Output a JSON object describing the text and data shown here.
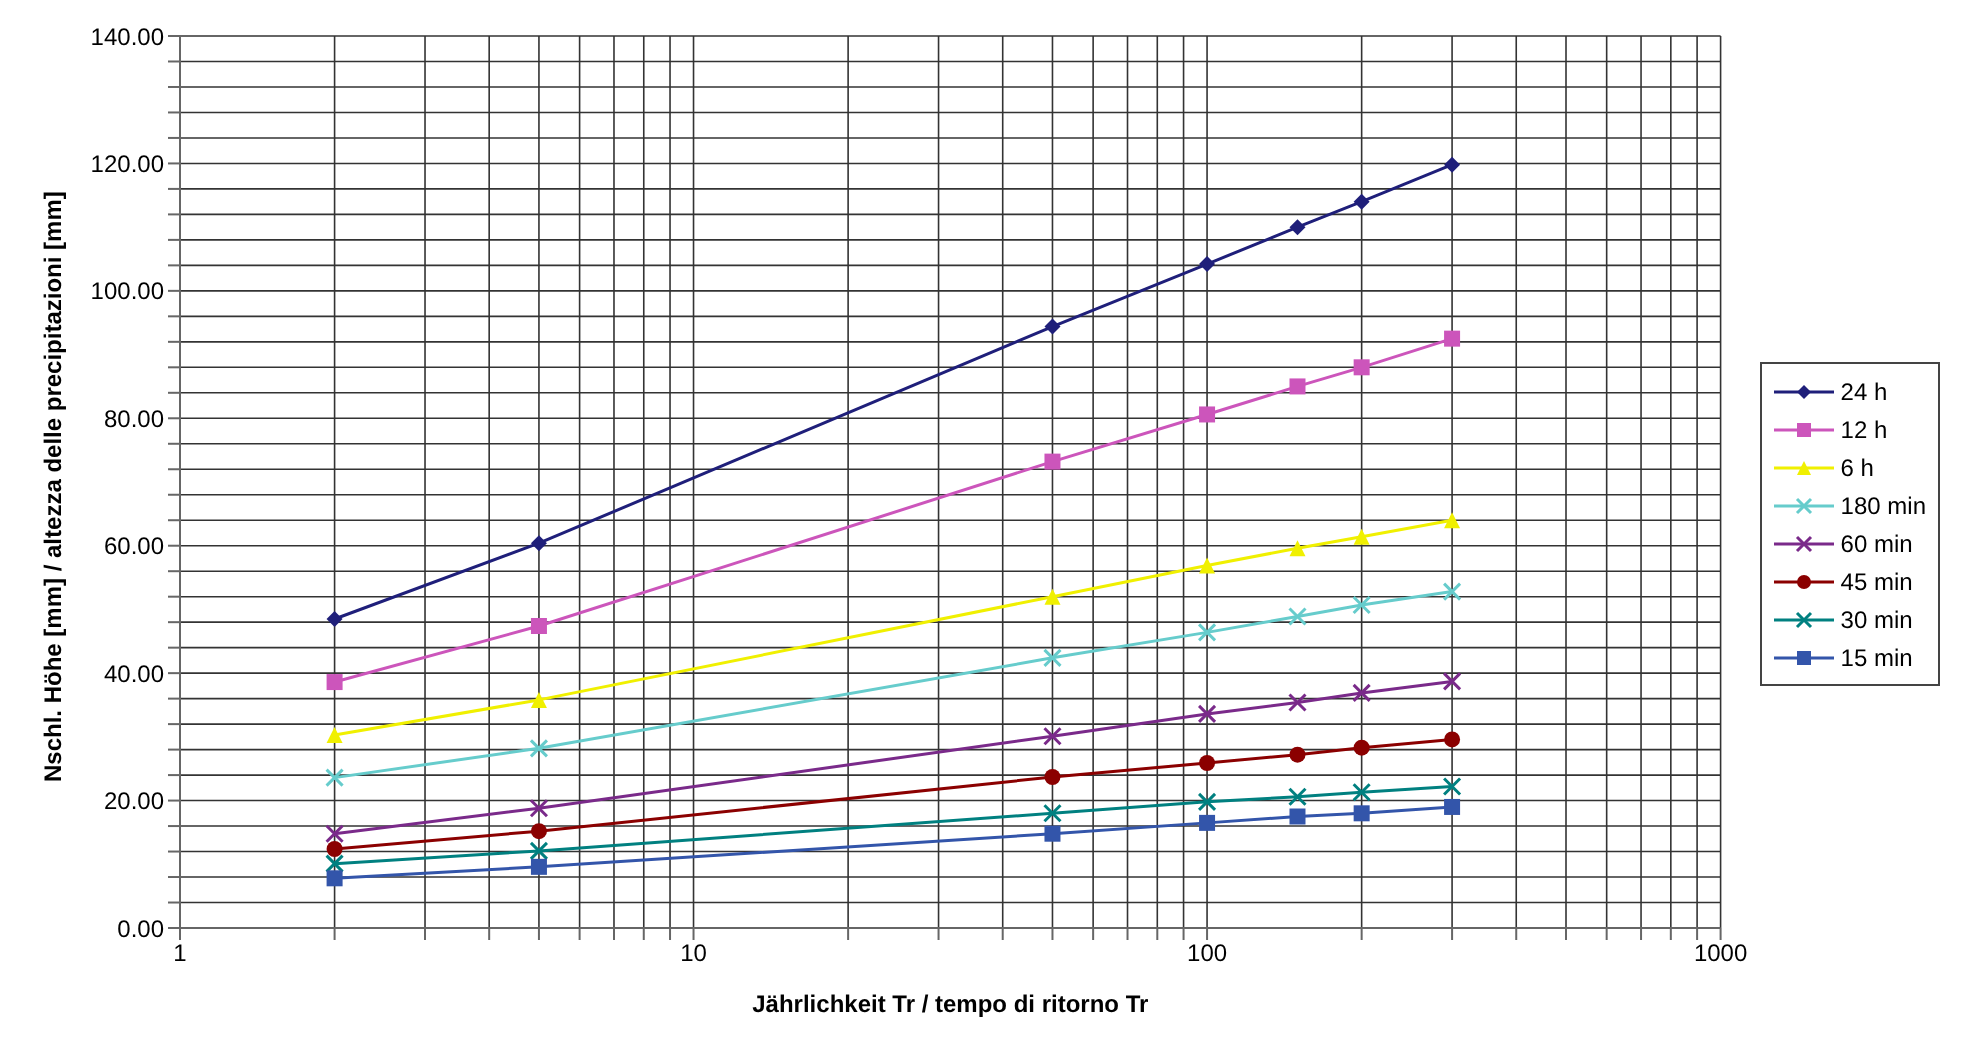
{
  "chart_data": {
    "type": "line",
    "xlabel": "Jährlichkeit Tr / tempo di ritorno Tr",
    "ylabel": "Nschl. Höhe [mm]  /  altezza delle precipitazioni [mm]",
    "x": [
      2,
      5,
      50,
      100,
      150,
      200,
      300
    ],
    "log": "x",
    "grid": true,
    "legend": "right",
    "line_style": "solid",
    "xlim": [
      1,
      1000
    ],
    "xticks": [
      1,
      {
        "value": 2,
        "label": null
      },
      {
        "value": 3,
        "label": null
      },
      {
        "value": 4,
        "label": null
      },
      {
        "value": 5,
        "label": null
      },
      {
        "value": 6,
        "label": null
      },
      {
        "value": 7,
        "label": null
      },
      {
        "value": 8,
        "label": null
      },
      {
        "value": 9,
        "label": null
      },
      10,
      {
        "value": 20,
        "label": null
      },
      {
        "value": 30,
        "label": null
      },
      {
        "value": 40,
        "label": null
      },
      {
        "value": 50,
        "label": null
      },
      {
        "value": 60,
        "label": null
      },
      {
        "value": 70,
        "label": null
      },
      {
        "value": 80,
        "label": null
      },
      {
        "value": 90,
        "label": null
      },
      100,
      {
        "value": 200,
        "label": null
      },
      {
        "value": 300,
        "label": null
      },
      {
        "value": 400,
        "label": null
      },
      {
        "value": 500,
        "label": null
      },
      {
        "value": 600,
        "label": null
      },
      {
        "value": 700,
        "label": null
      },
      {
        "value": 800,
        "label": null
      },
      {
        "value": 900,
        "label": null
      },
      1000
    ],
    "ylim": [
      0,
      140
    ],
    "yticks": [
      {
        "value": 0,
        "label": "0.00"
      },
      {
        "value": 4,
        "label": null
      },
      {
        "value": 8,
        "label": null
      },
      {
        "value": 12,
        "label": null
      },
      {
        "value": 16,
        "label": null
      },
      {
        "value": 20,
        "label": "20.00"
      },
      {
        "value": 24,
        "label": null
      },
      {
        "value": 28,
        "label": null
      },
      {
        "value": 32,
        "label": null
      },
      {
        "value": 36,
        "label": null
      },
      {
        "value": 40,
        "label": "40.00"
      },
      {
        "value": 44,
        "label": null
      },
      {
        "value": 48,
        "label": null
      },
      {
        "value": 52,
        "label": null
      },
      {
        "value": 56,
        "label": null
      },
      {
        "value": 60,
        "label": "60.00"
      },
      {
        "value": 64,
        "label": null
      },
      {
        "value": 68,
        "label": null
      },
      {
        "value": 72,
        "label": null
      },
      {
        "value": 76,
        "label": null
      },
      {
        "value": 80,
        "label": "80.00"
      },
      {
        "value": 84,
        "label": null
      },
      {
        "value": 88,
        "label": null
      },
      {
        "value": 92,
        "label": null
      },
      {
        "value": 96,
        "label": null
      },
      {
        "value": 100,
        "label": "100.00"
      },
      {
        "value": 104,
        "label": null
      },
      {
        "value": 108,
        "label": null
      },
      {
        "value": 112,
        "label": null
      },
      {
        "value": 116,
        "label": null
      },
      {
        "value": 120,
        "label": "120.00"
      },
      {
        "value": 124,
        "label": null
      },
      {
        "value": 128,
        "label": null
      },
      {
        "value": 132,
        "label": null
      },
      {
        "value": 136,
        "label": null
      },
      {
        "value": 140,
        "label": "140.00"
      }
    ],
    "series": [
      {
        "name": "24 h",
        "color": "#1f1f7a",
        "marker": "diamond",
        "values": [
          48.5,
          60.4,
          94.4,
          104.2,
          110,
          114,
          119.8
        ]
      },
      {
        "name": "12 h",
        "color": "#cc55bb",
        "marker": "square",
        "values": [
          38.6,
          47.4,
          73.2,
          80.6,
          85,
          88,
          92.5
        ]
      },
      {
        "name": "6 h",
        "color": "#f0f000",
        "marker": "triangle",
        "values": [
          30.3,
          35.8,
          52,
          56.9,
          59.6,
          61.4,
          64
        ]
      },
      {
        "name": "180 min",
        "color": "#66cccc",
        "marker": "cross",
        "values": [
          23.6,
          28.2,
          42.4,
          46.4,
          48.9,
          50.7,
          52.8
        ]
      },
      {
        "name": "60 min",
        "color": "#7a2a8a",
        "marker": "cross",
        "values": [
          14.8,
          18.8,
          30.1,
          33.6,
          35.4,
          36.9,
          38.7
        ]
      },
      {
        "name": "45 min",
        "color": "#8b0000",
        "marker": "circle",
        "values": [
          12.4,
          15.2,
          23.7,
          25.9,
          27.2,
          28.3,
          29.6
        ]
      },
      {
        "name": "30 min",
        "color": "#008080",
        "marker": "cross",
        "values": [
          10.1,
          12.1,
          18,
          19.8,
          20.6,
          21.3,
          22.2
        ]
      },
      {
        "name": "15 min",
        "color": "#3355aa",
        "marker": "square",
        "values": [
          7.8,
          9.6,
          14.8,
          16.5,
          17.5,
          18,
          19
        ]
      }
    ]
  }
}
